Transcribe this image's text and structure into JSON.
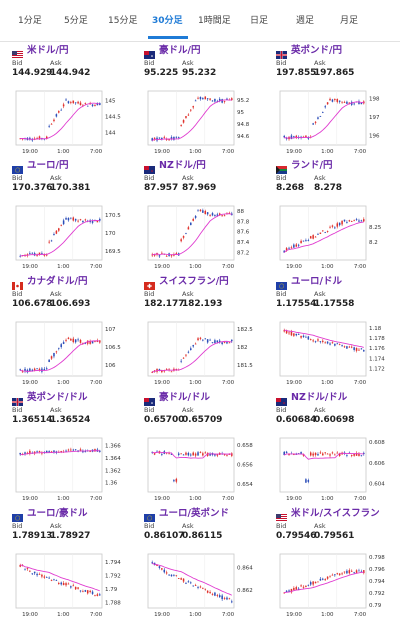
{
  "tabs": [
    "1分足",
    "5分足",
    "15分足",
    "30分足",
    "1時間足",
    "日足",
    "週足",
    "月足"
  ],
  "active_tab": 3,
  "bid_label": "Bid",
  "ask_label": "Ask",
  "x_ticks": [
    "19:00",
    "1:00",
    "7:00"
  ],
  "colors": {
    "up": "#e0302b",
    "down": "#2b4db8",
    "ma": "#e03cd0",
    "active_tab": "#1f7bd6",
    "pair_text": "#6a2aa8"
  },
  "cards": [
    {
      "pair": "米ドル/円",
      "flag": "us-flag",
      "bid": "144.929",
      "ask": "144.942",
      "y_ticks": [
        "145",
        "144.5",
        "144"
      ],
      "chart_data": {
        "type": "candlestick",
        "ylim": [
          143.6,
          145.3
        ],
        "shape": "gap-up",
        "level_start": 143.8,
        "level_end": 144.93
      }
    },
    {
      "pair": "豪ドル/円",
      "flag": "au-flag",
      "bid": "95.225",
      "ask": "95.232",
      "y_ticks": [
        "95.2",
        "95",
        "94.8",
        "94.6"
      ],
      "chart_data": {
        "type": "candlestick",
        "ylim": [
          94.45,
          95.35
        ],
        "shape": "gap-up",
        "level_start": 94.55,
        "level_end": 95.22
      }
    },
    {
      "pair": "英ポンド/円",
      "flag": "gb-flag",
      "bid": "197.855",
      "ask": "197.865",
      "y_ticks": [
        "198",
        "197",
        "196"
      ],
      "chart_data": {
        "type": "candlestick",
        "ylim": [
          195.5,
          198.4
        ],
        "shape": "gap-up",
        "level_start": 195.9,
        "level_end": 197.85
      }
    },
    {
      "pair": "ユーロ/円",
      "flag": "eu-flag",
      "bid": "170.376",
      "ask": "170.381",
      "y_ticks": [
        "170.5",
        "170",
        "169.5"
      ],
      "chart_data": {
        "type": "candlestick",
        "ylim": [
          169.25,
          170.75
        ],
        "shape": "gap-up",
        "level_start": 169.4,
        "level_end": 170.37
      }
    },
    {
      "pair": "NZドル/円",
      "flag": "nz-flag",
      "bid": "87.957",
      "ask": "87.969",
      "y_ticks": [
        "88",
        "87.8",
        "87.6",
        "87.4",
        "87.2"
      ],
      "chart_data": {
        "type": "candlestick",
        "ylim": [
          87.05,
          88.1
        ],
        "shape": "gap-up",
        "level_start": 87.15,
        "level_end": 87.96
      }
    },
    {
      "pair": "ランド/円",
      "flag": "za-flag",
      "bid": "8.268",
      "ask": "8.278",
      "y_ticks": [
        "8.25",
        "8.2"
      ],
      "chart_data": {
        "type": "candlestick",
        "ylim": [
          8.14,
          8.32
        ],
        "shape": "rise",
        "level_start": 8.17,
        "level_end": 8.27
      }
    },
    {
      "pair": "カナダドル/円",
      "flag": "ca-flag",
      "bid": "106.678",
      "ask": "106.693",
      "y_ticks": [
        "107",
        "106.5",
        "106"
      ],
      "chart_data": {
        "type": "candlestick",
        "ylim": [
          105.7,
          107.2
        ],
        "shape": "gap-up",
        "level_start": 105.85,
        "level_end": 106.68
      }
    },
    {
      "pair": "スイスフラン/円",
      "flag": "ch-flag",
      "bid": "182.177",
      "ask": "182.193",
      "y_ticks": [
        "182.5",
        "182",
        "181.5"
      ],
      "chart_data": {
        "type": "candlestick",
        "ylim": [
          181.2,
          182.7
        ],
        "shape": "gap-up",
        "level_start": 181.35,
        "level_end": 182.18
      }
    },
    {
      "pair": "ユーロ/ドル",
      "flag": "eu-flag",
      "bid": "1.17554",
      "ask": "1.17558",
      "y_ticks": [
        "1.18",
        "1.178",
        "1.176",
        "1.174",
        "1.172"
      ],
      "chart_data": {
        "type": "candlestick",
        "ylim": [
          1.1705,
          1.1812
        ],
        "shape": "decline",
        "level_start": 1.1795,
        "level_end": 1.1755
      }
    },
    {
      "pair": "英ポンド/ドル",
      "flag": "gb-flag",
      "bid": "1.36514",
      "ask": "1.36524",
      "y_ticks": [
        "1.366",
        "1.364",
        "1.362",
        "1.36"
      ],
      "chart_data": {
        "type": "candlestick",
        "ylim": [
          1.3585,
          1.3672
        ],
        "shape": "flat",
        "level_start": 1.3648,
        "level_end": 1.3652
      }
    },
    {
      "pair": "豪ドル/ドル",
      "flag": "au-flag",
      "bid": "0.65700",
      "ask": "0.65709",
      "y_ticks": [
        "0.658",
        "0.656",
        "0.654"
      ],
      "chart_data": {
        "type": "candlestick",
        "ylim": [
          0.6532,
          0.6587
        ],
        "shape": "flat-dip",
        "level_start": 0.6572,
        "level_end": 0.657
      }
    },
    {
      "pair": "NZドル/ドル",
      "flag": "nz-flag",
      "bid": "0.60684",
      "ask": "0.60698",
      "y_ticks": [
        "0.608",
        "0.606",
        "0.604"
      ],
      "chart_data": {
        "type": "candlestick",
        "ylim": [
          0.6032,
          0.6084
        ],
        "shape": "flat-dip",
        "level_start": 0.6069,
        "level_end": 0.6068
      }
    },
    {
      "pair": "ユーロ/豪ドル",
      "flag": "eu-flag",
      "bid": "1.78913",
      "ask": "1.78927",
      "y_ticks": [
        "1.794",
        "1.792",
        "1.79",
        "1.788"
      ],
      "chart_data": {
        "type": "candlestick",
        "ylim": [
          1.7872,
          1.7952
        ],
        "shape": "decline",
        "level_start": 1.7935,
        "level_end": 1.7891
      }
    },
    {
      "pair": "ユーロ/英ポンド",
      "flag": "eu-flag",
      "bid": "0.86107",
      "ask": "0.86115",
      "y_ticks": [
        "0.864",
        "0.862"
      ],
      "chart_data": {
        "type": "candlestick",
        "ylim": [
          0.8604,
          0.8652
        ],
        "shape": "decline",
        "level_start": 0.8645,
        "level_end": 0.861
      }
    },
    {
      "pair": "米ドル/スイスフラン",
      "flag": "us-flag",
      "bid": "0.79546",
      "ask": "0.79561",
      "y_ticks": [
        "0.798",
        "0.796",
        "0.794",
        "0.792",
        "0.79"
      ],
      "chart_data": {
        "type": "candlestick",
        "ylim": [
          0.7895,
          0.7985
        ],
        "shape": "rise",
        "level_start": 0.792,
        "level_end": 0.7955
      }
    }
  ]
}
